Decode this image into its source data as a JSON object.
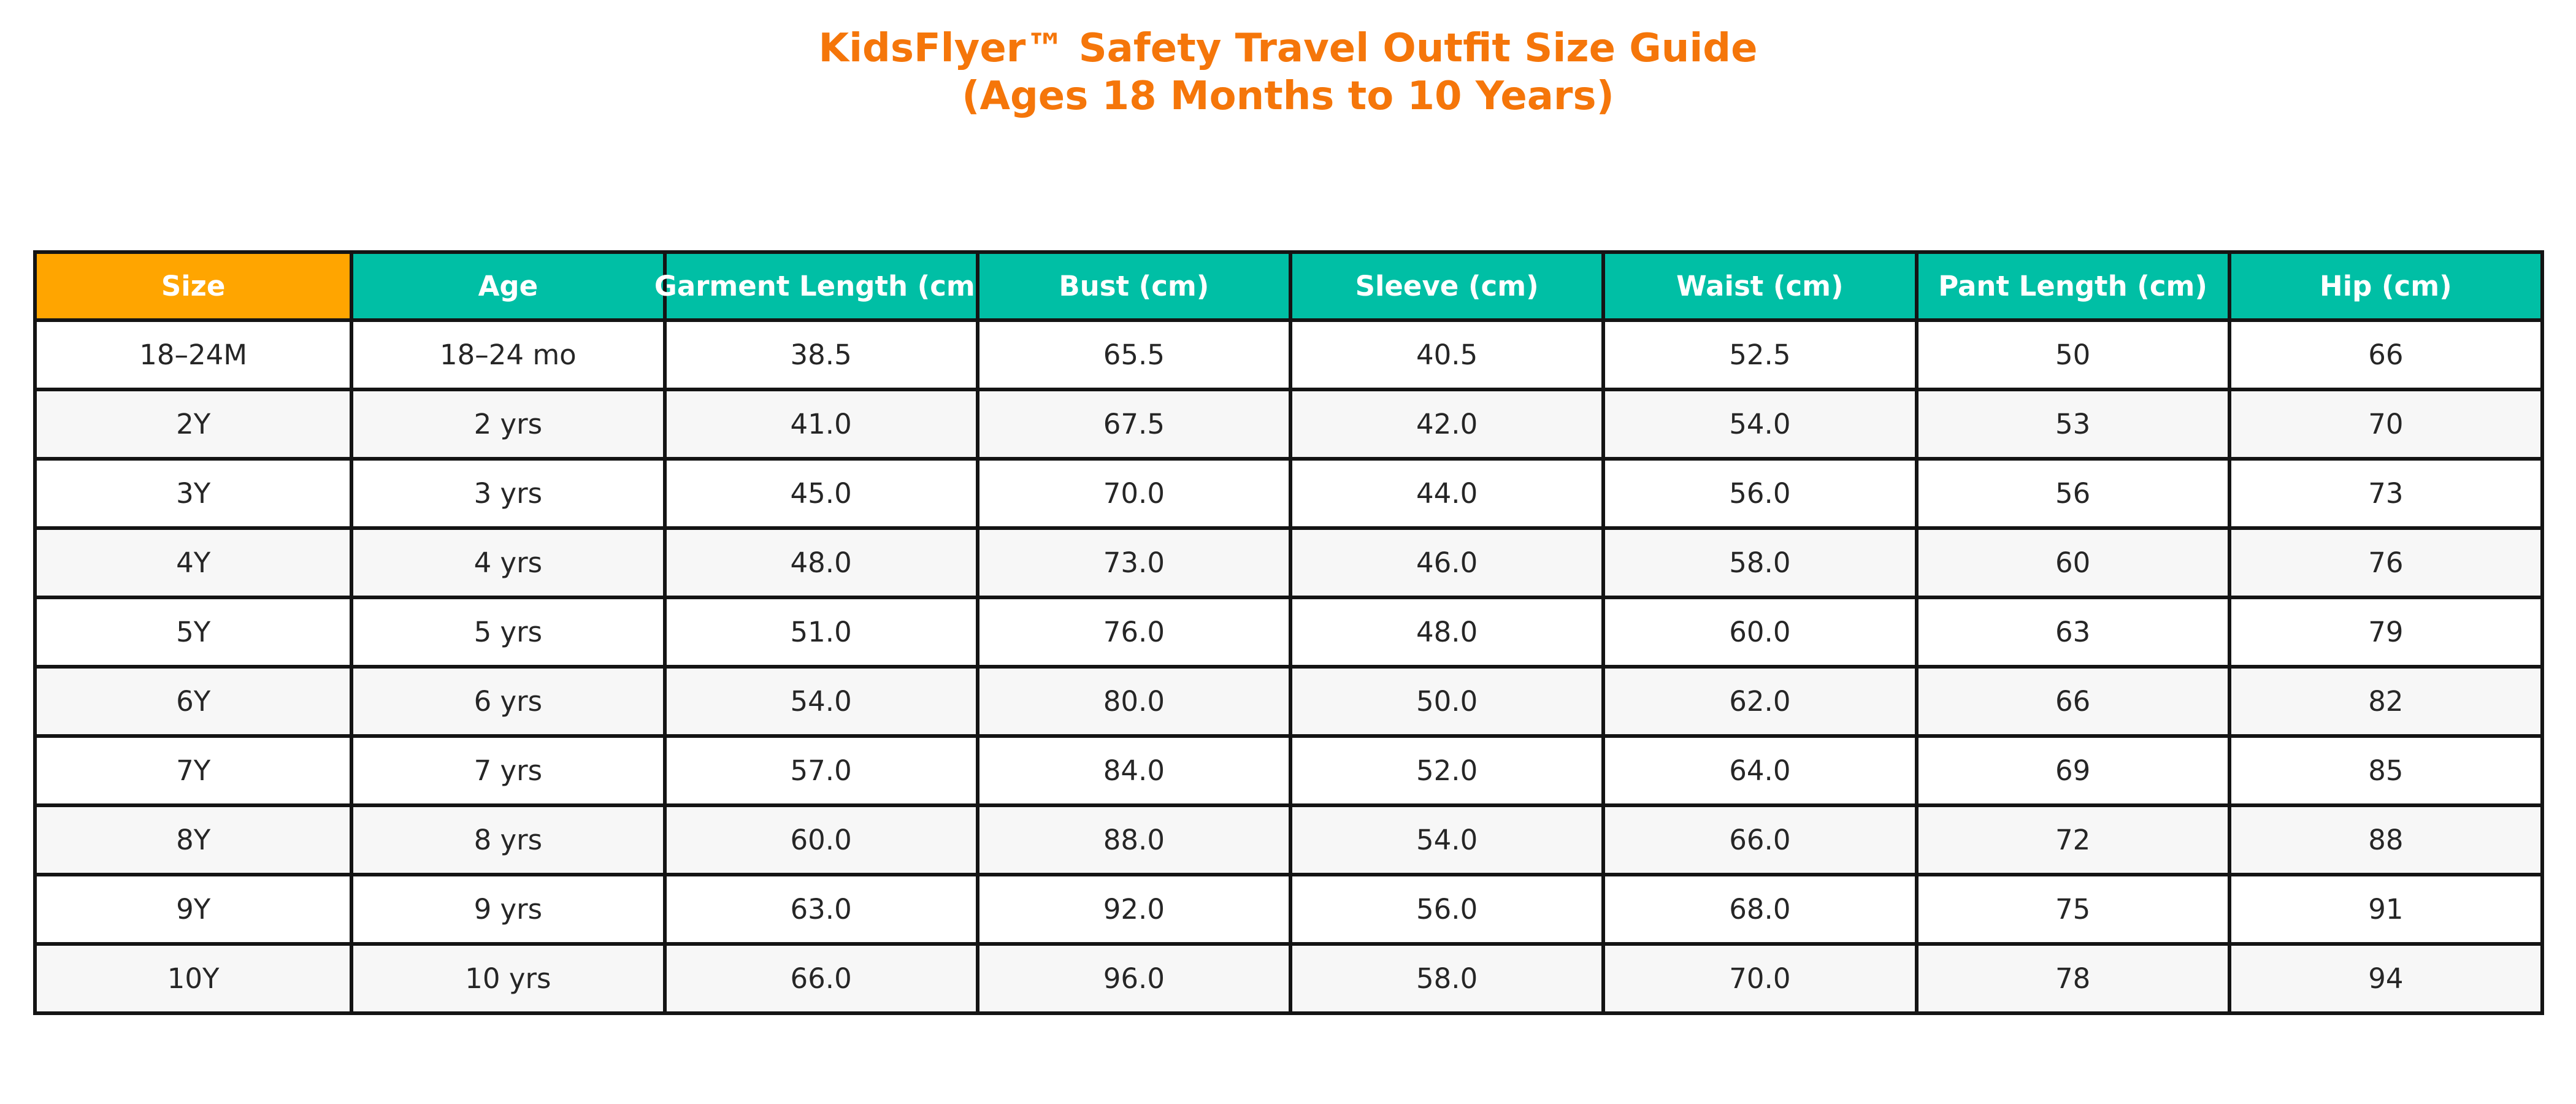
{
  "title": {
    "line1": "KidsFlyer™ Safety Travel Outfit Size Guide",
    "line2": "(Ages 18 Months to 10 Years)"
  },
  "colors": {
    "title_orange": "#f5760a",
    "header_orange": "#ffa500",
    "header_teal": "#00bfa5",
    "header_text": "#ffffff",
    "border": "#141414",
    "body_text": "#262626",
    "row_white": "#ffffff",
    "row_stripe": "#f7f7f7"
  },
  "chart_data": {
    "type": "table",
    "title": "KidsFlyer™ Safety Travel Outfit Size Guide (Ages 18 Months to 10 Years)",
    "columns": [
      "Size",
      "Age",
      "Garment Length (cm)",
      "Bust (cm)",
      "Sleeve (cm)",
      "Waist (cm)",
      "Pant Length (cm)",
      "Hip (cm)"
    ],
    "rows": [
      [
        "18–24M",
        "18–24 mo",
        "38.5",
        "65.5",
        "40.5",
        "52.5",
        "50",
        "66"
      ],
      [
        "2Y",
        "2 yrs",
        "41.0",
        "67.5",
        "42.0",
        "54.0",
        "53",
        "70"
      ],
      [
        "3Y",
        "3 yrs",
        "45.0",
        "70.0",
        "44.0",
        "56.0",
        "56",
        "73"
      ],
      [
        "4Y",
        "4 yrs",
        "48.0",
        "73.0",
        "46.0",
        "58.0",
        "60",
        "76"
      ],
      [
        "5Y",
        "5 yrs",
        "51.0",
        "76.0",
        "48.0",
        "60.0",
        "63",
        "79"
      ],
      [
        "6Y",
        "6 yrs",
        "54.0",
        "80.0",
        "50.0",
        "62.0",
        "66",
        "82"
      ],
      [
        "7Y",
        "7 yrs",
        "57.0",
        "84.0",
        "52.0",
        "64.0",
        "69",
        "85"
      ],
      [
        "8Y",
        "8 yrs",
        "60.0",
        "88.0",
        "54.0",
        "66.0",
        "72",
        "88"
      ],
      [
        "9Y",
        "9 yrs",
        "63.0",
        "92.0",
        "56.0",
        "68.0",
        "75",
        "91"
      ],
      [
        "10Y",
        "10 yrs",
        "66.0",
        "96.0",
        "58.0",
        "70.0",
        "78",
        "94"
      ]
    ],
    "layout": {
      "columns_equal_width": true,
      "header_first_cell_color": "orange",
      "header_other_cells_color": "teal",
      "row_striping": "even rows light gray",
      "grid": "black cell borders"
    }
  }
}
